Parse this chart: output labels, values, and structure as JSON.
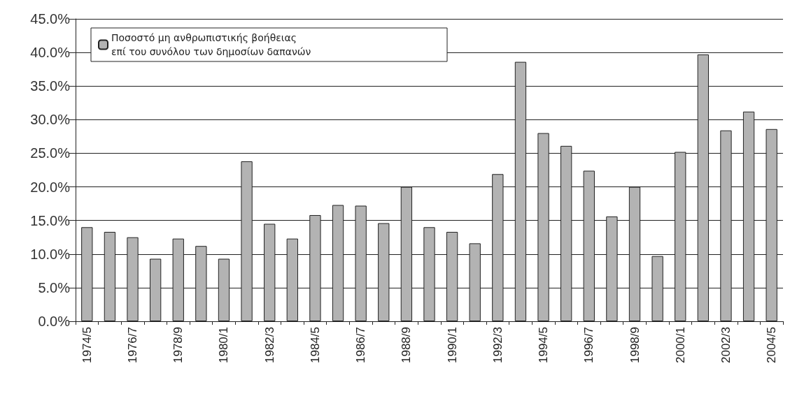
{
  "chart_data": {
    "type": "bar",
    "categories": [
      "1974/5",
      null,
      "1976/7",
      null,
      "1978/9",
      null,
      "1980/1",
      null,
      "1982/3",
      null,
      "1984/5",
      null,
      "1986/7",
      null,
      "1988/9",
      null,
      "1990/1",
      null,
      "1992/3",
      null,
      "1994/5",
      null,
      "1996/7",
      null,
      "1998/9",
      null,
      "2000/1",
      null,
      "2002/3",
      null,
      "2004/5"
    ],
    "series": [
      {
        "name": "Ποσοστό μη ανθρωπιστικής βοήθειας επί του συνόλου των δημοσίων δαπανών",
        "color": "#b3b3b3",
        "values": [
          14.0,
          13.3,
          12.5,
          9.3,
          12.3,
          11.2,
          9.3,
          23.8,
          14.5,
          12.3,
          15.8,
          17.3,
          17.2,
          14.6,
          20.0,
          14.0,
          13.3,
          11.6,
          21.9,
          38.6,
          28.0,
          26.1,
          22.4,
          15.6,
          20.0,
          9.7,
          25.2,
          39.7,
          28.4,
          31.2,
          28.6
        ]
      }
    ],
    "ylim": [
      0,
      45
    ],
    "yticks": [
      {
        "value": 0,
        "label": "0.0%"
      },
      {
        "value": 5,
        "label": "5.0%"
      },
      {
        "value": 10,
        "label": "10.0%"
      },
      {
        "value": 15,
        "label": "15.0%"
      },
      {
        "value": 20,
        "label": "20.0%"
      },
      {
        "value": 25,
        "label": "25.0%"
      },
      {
        "value": 30,
        "label": "30.0%"
      },
      {
        "value": 35,
        "label": "35.0%"
      },
      {
        "value": 40,
        "label": "40.0%"
      },
      {
        "value": 45,
        "label": "45.0%"
      }
    ],
    "grid": "y",
    "legend": "top left"
  }
}
